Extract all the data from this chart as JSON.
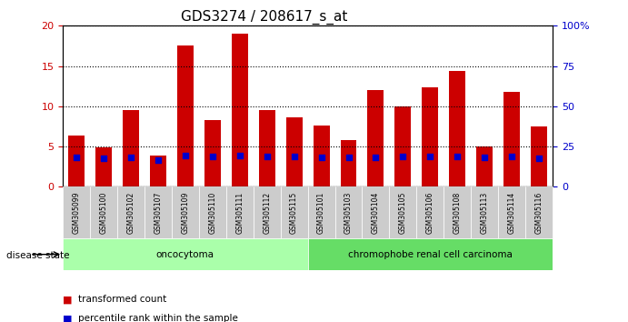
{
  "title": "GDS3274 / 208617_s_at",
  "categories": [
    "GSM305099",
    "GSM305100",
    "GSM305102",
    "GSM305107",
    "GSM305109",
    "GSM305110",
    "GSM305111",
    "GSM305112",
    "GSM305115",
    "GSM305101",
    "GSM305103",
    "GSM305104",
    "GSM305105",
    "GSM305106",
    "GSM305108",
    "GSM305113",
    "GSM305114",
    "GSM305116"
  ],
  "bar_values": [
    6.4,
    4.9,
    9.5,
    3.9,
    17.5,
    8.3,
    19.0,
    9.5,
    8.6,
    7.6,
    5.8,
    12.0,
    10.0,
    12.3,
    14.4,
    5.0,
    11.8,
    7.5
  ],
  "percentile_values": [
    18.3,
    17.5,
    18.3,
    16.7,
    19.2,
    18.7,
    19.2,
    18.7,
    18.7,
    18.0,
    18.0,
    18.3,
    18.7,
    19.0,
    18.7,
    18.0,
    18.7,
    17.6
  ],
  "bar_color": "#cc0000",
  "dot_color": "#0000cc",
  "ylim_left": [
    0,
    20
  ],
  "ylim_right": [
    0,
    100
  ],
  "yticks_left": [
    0,
    5,
    10,
    15,
    20
  ],
  "yticks_right": [
    0,
    25,
    50,
    75,
    100
  ],
  "ytick_labels_right": [
    "0",
    "25",
    "50",
    "75",
    "100%"
  ],
  "groups": [
    {
      "label": "oncocytoma",
      "start": 0,
      "end": 9,
      "color": "#aaffaa"
    },
    {
      "label": "chromophobe renal cell carcinoma",
      "start": 9,
      "end": 18,
      "color": "#66dd66"
    }
  ],
  "disease_state_label": "disease state",
  "legend_bar_label": "transformed count",
  "legend_dot_label": "percentile rank within the sample",
  "background_color": "#ffffff",
  "grid_color": "#000000",
  "tick_label_bg": "#cccccc"
}
